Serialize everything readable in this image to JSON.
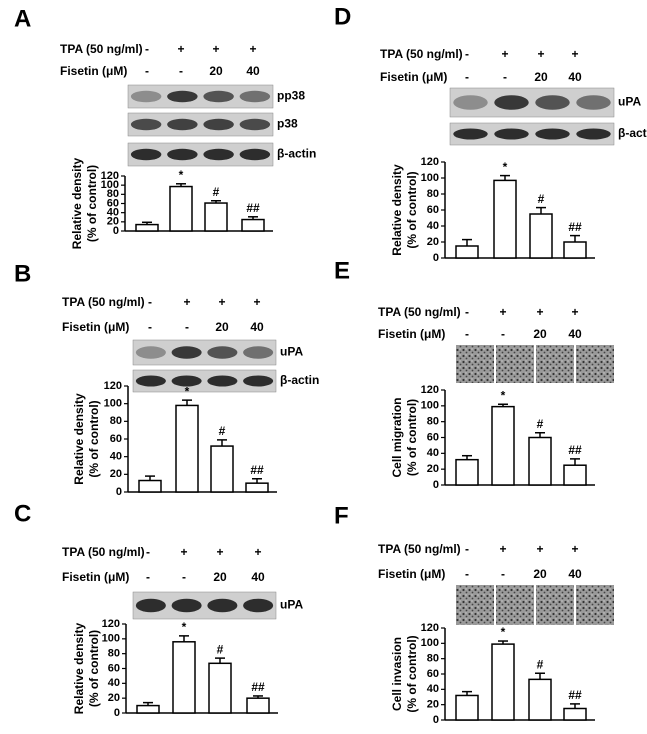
{
  "chart_data": [
    {
      "type": "bar",
      "panel": "A",
      "treatments": [
        {
          "label": "TPA (50 ng/ml)",
          "levels": [
            "-",
            "+",
            "+",
            "+"
          ]
        },
        {
          "label": "Fisetin (μM)",
          "levels": [
            "-",
            "-",
            "20",
            "40"
          ]
        }
      ],
      "blots": [
        "pp38",
        "p38",
        "β-actin"
      ],
      "ylabel": [
        "Relative density",
        "(% of control)"
      ],
      "values": [
        14,
        97,
        61,
        25
      ],
      "errors": [
        5,
        6,
        5,
        6
      ],
      "annotations": [
        null,
        "*",
        "#",
        "##"
      ],
      "ylim": [
        0,
        120
      ],
      "yticks": [
        0,
        20,
        40,
        60,
        80,
        100,
        120
      ],
      "color": "#ffffff"
    },
    {
      "type": "bar",
      "panel": "B",
      "treatments": [
        {
          "label": "TPA (50 ng/ml)",
          "levels": [
            "-",
            "+",
            "+",
            "+"
          ]
        },
        {
          "label": "Fisetin (μM)",
          "levels": [
            "-",
            "-",
            "20",
            "40"
          ]
        }
      ],
      "blots": [
        "uPA",
        "β-actin"
      ],
      "ylabel": [
        "Relative density",
        "(% of control)"
      ],
      "values": [
        13,
        98,
        52,
        10
      ],
      "errors": [
        5,
        6,
        7,
        5
      ],
      "annotations": [
        null,
        "*",
        "#",
        "##"
      ],
      "ylim": [
        0,
        120
      ],
      "yticks": [
        0,
        20,
        40,
        60,
        80,
        100,
        120
      ],
      "color": "#ffffff"
    },
    {
      "type": "bar",
      "panel": "C",
      "treatments": [
        {
          "label": "TPA (50 ng/ml)",
          "levels": [
            "-",
            "+",
            "+",
            "+"
          ]
        },
        {
          "label": "Fisetin (μM)",
          "levels": [
            "-",
            "-",
            "20",
            "40"
          ]
        }
      ],
      "blots": [
        "uPA"
      ],
      "ylabel": [
        "Relative density",
        "(% of control)"
      ],
      "values": [
        10,
        96,
        67,
        20
      ],
      "errors": [
        4,
        8,
        7,
        3
      ],
      "annotations": [
        null,
        "*",
        "#",
        "##"
      ],
      "ylim": [
        0,
        120
      ],
      "yticks": [
        0,
        20,
        40,
        60,
        80,
        100,
        120
      ],
      "color": "#ffffff"
    },
    {
      "type": "bar",
      "panel": "D",
      "treatments": [
        {
          "label": "TPA (50 ng/ml)",
          "levels": [
            "-",
            "+",
            "+",
            "+"
          ]
        },
        {
          "label": "Fisetin (μM)",
          "levels": [
            "-",
            "-",
            "20",
            "40"
          ]
        }
      ],
      "blots": [
        "uPA",
        "β-actin"
      ],
      "ylabel": [
        "Relative density",
        "(% of control)"
      ],
      "values": [
        15,
        97,
        55,
        20
      ],
      "errors": [
        8,
        6,
        8,
        8
      ],
      "annotations": [
        null,
        "*",
        "#",
        "##"
      ],
      "ylim": [
        0,
        120
      ],
      "yticks": [
        0,
        20,
        40,
        60,
        80,
        100,
        120
      ],
      "color": "#ffffff"
    },
    {
      "type": "bar",
      "panel": "E",
      "treatments": [
        {
          "label": "TPA (50 ng/ml)",
          "levels": [
            "-",
            "+",
            "+",
            "+"
          ]
        },
        {
          "label": "Fisetin (μM)",
          "levels": [
            "-",
            "-",
            "20",
            "40"
          ]
        }
      ],
      "blots": [],
      "ylabel": [
        "Cell migration",
        "(% of control)"
      ],
      "values": [
        32,
        99,
        60,
        25
      ],
      "errors": [
        5,
        3,
        6,
        8
      ],
      "annotations": [
        null,
        "*",
        "#",
        "##"
      ],
      "ylim": [
        0,
        120
      ],
      "yticks": [
        0,
        20,
        40,
        60,
        80,
        100,
        120
      ],
      "color": "#ffffff"
    },
    {
      "type": "bar",
      "panel": "F",
      "treatments": [
        {
          "label": "TPA (50 ng/ml)",
          "levels": [
            "-",
            "+",
            "+",
            "+"
          ]
        },
        {
          "label": "Fisetin (μM)",
          "levels": [
            "-",
            "-",
            "20",
            "40"
          ]
        }
      ],
      "blots": [],
      "ylabel": [
        "Cell invasion",
        "(% of control)"
      ],
      "values": [
        32,
        99,
        53,
        15
      ],
      "errors": [
        5,
        4,
        8,
        6
      ],
      "annotations": [
        null,
        "*",
        "#",
        "##"
      ],
      "ylim": [
        0,
        120
      ],
      "yticks": [
        0,
        20,
        40,
        60,
        80,
        100,
        120
      ],
      "color": "#ffffff"
    }
  ]
}
